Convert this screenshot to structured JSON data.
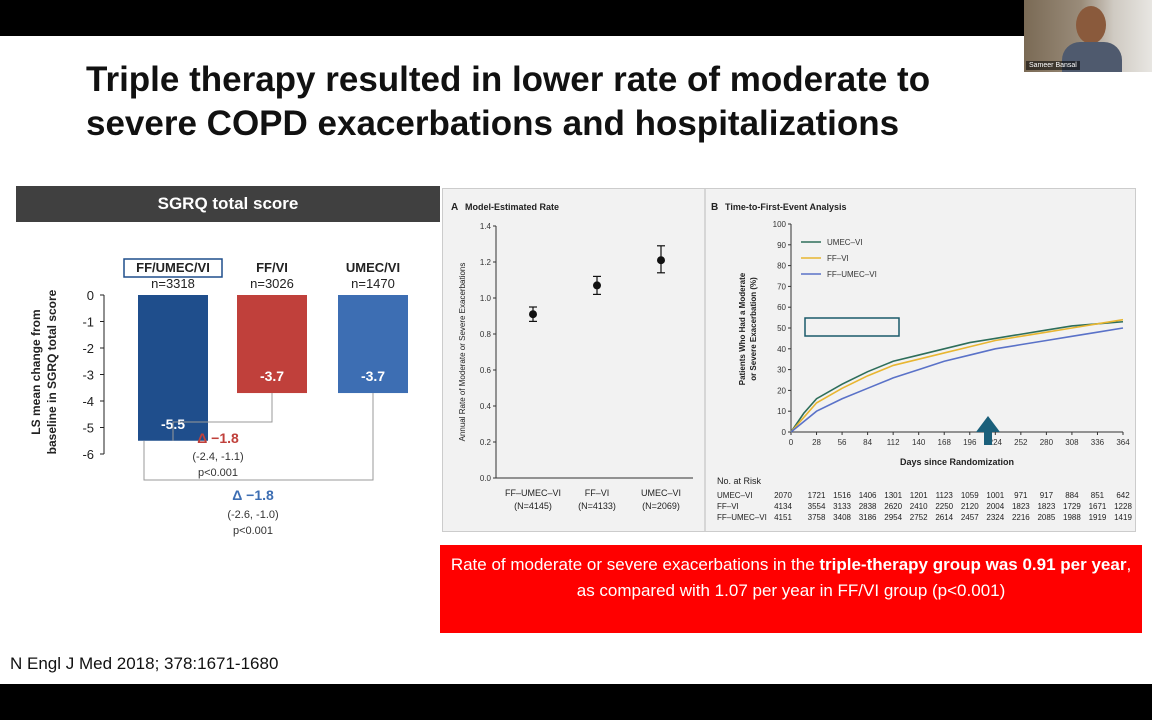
{
  "title": "Triple therapy resulted in lower rate of moderate to severe COPD exacerbations and hospitalizations",
  "video": {
    "participant_name": "Sameer Bansal"
  },
  "citation": "N Engl J Med 2018; 378:1671-1680",
  "callout": {
    "part1": "Rate of moderate or severe exacerbations in the ",
    "part2": "triple-therapy group was 0.91 per year",
    "part3": ", as compared with 1.07 per year in FF/VI group (p<0.001)"
  },
  "chart_data": [
    {
      "type": "bar",
      "title": "SGRQ total score",
      "ylabel": "LS mean change from baseline in SGRQ total score",
      "ylim": [
        -6,
        0
      ],
      "yticks": [
        "0",
        "-1",
        "-2",
        "-3",
        "-4",
        "-5",
        "-6"
      ],
      "categories": [
        "FF/UMEC/VI",
        "FF/VI",
        "UMEC/VI"
      ],
      "n_labels": [
        "n=3318",
        "n=3026",
        "n=1470"
      ],
      "values": [
        -5.5,
        -3.7,
        -3.7
      ],
      "value_labels": [
        "-5.5",
        "-3.7",
        "-3.7"
      ],
      "colors": [
        "#1f4e8c",
        "#c0403b",
        "#3d6eb3"
      ],
      "comparisons": [
        {
          "delta": "Δ −1.8",
          "ci": "(-2.4, -1.1)",
          "p": "p<0.001",
          "color": "#c0403b"
        },
        {
          "delta": "Δ −1.8",
          "ci": "(-2.6, -1.0)",
          "p": "p<0.001",
          "color": "#3d6eb3"
        }
      ]
    },
    {
      "type": "scatter",
      "panel_label": "A",
      "title": "Model-Estimated Rate",
      "ylabel": "Annual Rate of Moderate or Severe Exacerbations",
      "ylim": [
        0.0,
        1.4
      ],
      "yticks": [
        "0.0",
        "0.2",
        "0.4",
        "0.6",
        "0.8",
        "1.0",
        "1.2",
        "1.4"
      ],
      "categories": [
        "FF–UMEC–VI",
        "FF–VI",
        "UMEC–VI"
      ],
      "n_labels": [
        "(N=4145)",
        "(N=4133)",
        "(N=2069)"
      ],
      "values": [
        0.91,
        1.07,
        1.21
      ],
      "ci_low": [
        0.87,
        1.02,
        1.14
      ],
      "ci_high": [
        0.95,
        1.12,
        1.29
      ]
    },
    {
      "type": "line",
      "panel_label": "B",
      "title": "Time-to-First-Event Analysis",
      "xlabel": "Days since Randomization",
      "ylabel": "Patients Who Had a Moderate or Severe Exacerbation (%)",
      "xlim": [
        0,
        364
      ],
      "ylim": [
        0,
        100
      ],
      "xticks": [
        "0",
        "28",
        "56",
        "84",
        "112",
        "140",
        "168",
        "196",
        "224",
        "252",
        "280",
        "308",
        "336",
        "364"
      ],
      "yticks": [
        "0",
        "10",
        "20",
        "30",
        "40",
        "50",
        "60",
        "70",
        "80",
        "90",
        "100"
      ],
      "x": [
        0,
        14,
        28,
        56,
        84,
        112,
        140,
        168,
        196,
        224,
        252,
        280,
        308,
        336,
        364
      ],
      "series": [
        {
          "name": "UMEC–VI",
          "color": "#2e6e5a",
          "values": [
            0,
            9,
            16,
            23,
            29,
            34,
            37,
            40,
            43,
            45,
            47,
            49,
            51,
            52,
            53
          ]
        },
        {
          "name": "FF–VI",
          "color": "#e8b631",
          "values": [
            0,
            7,
            14,
            21,
            27,
            32,
            35,
            38,
            41,
            44,
            46,
            48,
            50,
            52,
            54
          ]
        },
        {
          "name": "FF–UMEC–VI",
          "color": "#5a72c8",
          "values": [
            0,
            5,
            10,
            16,
            21,
            26,
            30,
            34,
            37,
            40,
            42,
            44,
            46,
            48,
            50
          ]
        }
      ],
      "risk_table": {
        "header": "No. at Risk",
        "rows": [
          {
            "label": "UMEC–VI",
            "values": [
              "2070",
              "1721",
              "1516",
              "1406",
              "1301",
              "1201",
              "1123",
              "1059",
              "1001",
              "971",
              "917",
              "884",
              "851",
              "642"
            ]
          },
          {
            "label": "FF–VI",
            "values": [
              "4134",
              "3554",
              "3133",
              "2838",
              "2620",
              "2410",
              "2250",
              "2120",
              "2004",
              "1823",
              "1823",
              "1729",
              "1671",
              "1228"
            ]
          },
          {
            "label": "FF–UMEC–VI",
            "values": [
              "4151",
              "3758",
              "3408",
              "3186",
              "2954",
              "2752",
              "2614",
              "2457",
              "2324",
              "2216",
              "2085",
              "1988",
              "1919",
              "1419"
            ]
          }
        ]
      }
    }
  ]
}
